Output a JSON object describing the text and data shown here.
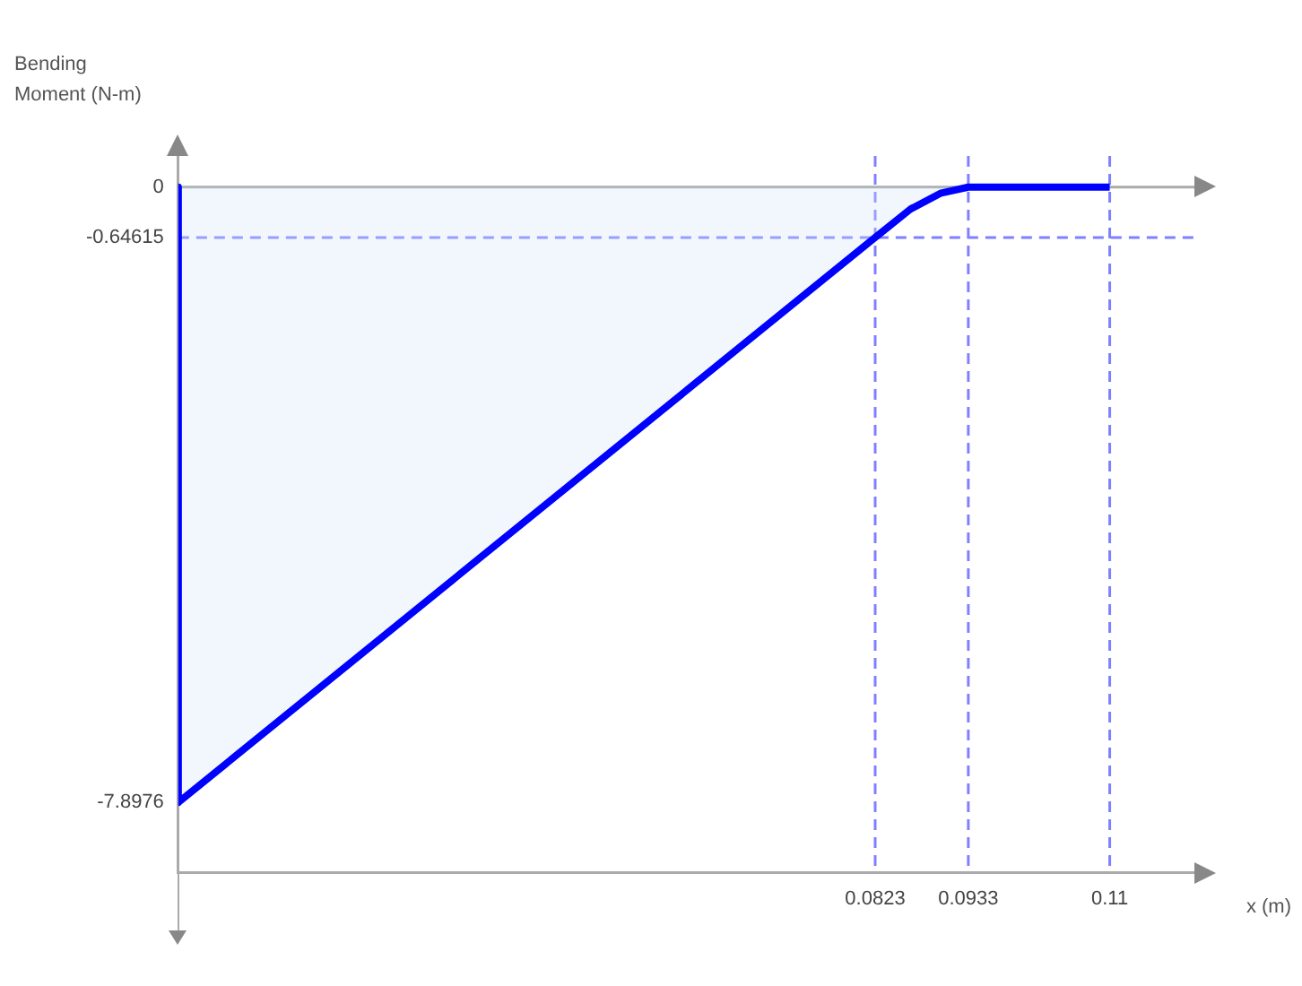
{
  "chart_data": {
    "type": "area",
    "ylabel": "Bending Moment (N-m)",
    "xlabel": "x (m)",
    "x": [
      0,
      0,
      0.0823,
      0.0865,
      0.09,
      0.0933,
      0.11
    ],
    "series": [
      {
        "color": "#0000ff",
        "values": [
          0,
          -7.8976,
          -0.64615,
          -0.28,
          -0.08,
          0,
          0
        ]
      }
    ],
    "xlim": [
      0,
      0.12
    ],
    "ylim": [
      -8.8,
      0.4
    ],
    "xticks": [
      0.0823,
      0.0933,
      0.11
    ],
    "yticks": [
      0,
      -0.64615,
      -7.8976
    ],
    "ref_lines": [
      {
        "axis": "x",
        "value": 0.0823,
        "color": "#8080ff",
        "line_style": "dashed"
      },
      {
        "axis": "x",
        "value": 0.0933,
        "color": "#8080ff",
        "line_style": "dashed"
      },
      {
        "axis": "x",
        "value": 0.11,
        "color": "#8080ff",
        "line_style": "dashed"
      },
      {
        "axis": "y",
        "value": -0.64615,
        "color": "#8080ff",
        "line_style": "dashed"
      }
    ],
    "grid": false,
    "legend": false,
    "marker": "none",
    "line_style": "solid"
  }
}
